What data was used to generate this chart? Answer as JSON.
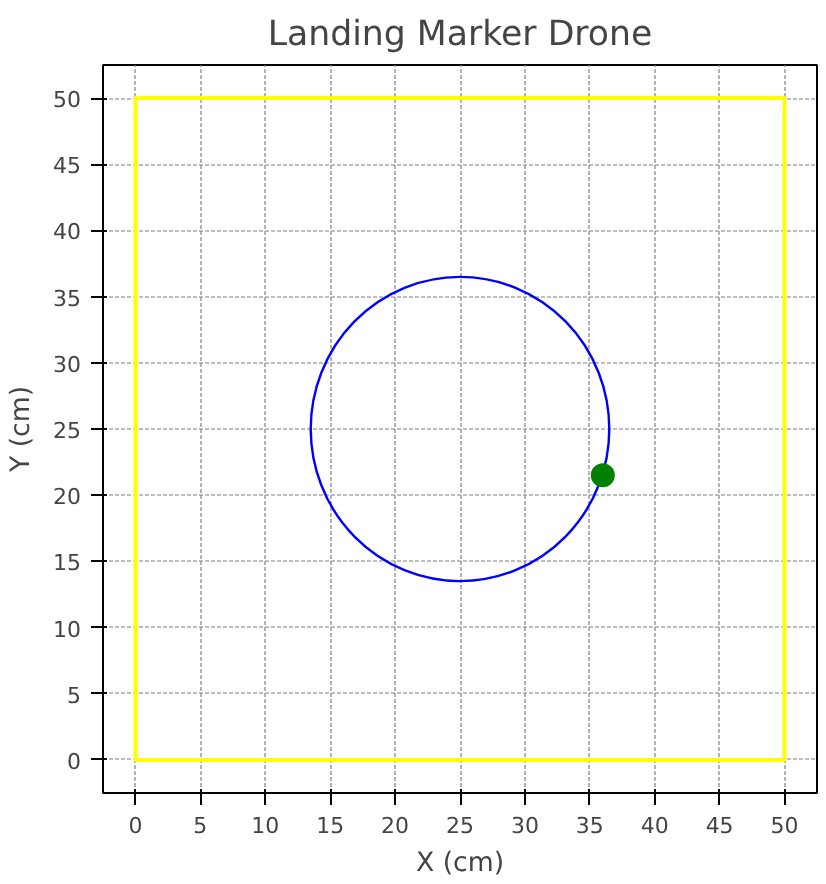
{
  "chart_data": {
    "type": "scatter",
    "title": "Landing Marker Drone",
    "xlabel": "X (cm)",
    "ylabel": "Y (cm)",
    "xlim": [
      -2.5,
      52.5
    ],
    "ylim": [
      -2.5,
      52.5
    ],
    "xticks": [
      0,
      5,
      10,
      15,
      20,
      25,
      30,
      35,
      40,
      45,
      50
    ],
    "yticks": [
      0,
      5,
      10,
      15,
      20,
      25,
      30,
      35,
      40,
      45,
      50
    ],
    "grid": true,
    "series": [
      {
        "color": "#008000",
        "marker": "circle",
        "x": [
          36
        ],
        "values": [
          21.5
        ]
      }
    ]
  }
}
